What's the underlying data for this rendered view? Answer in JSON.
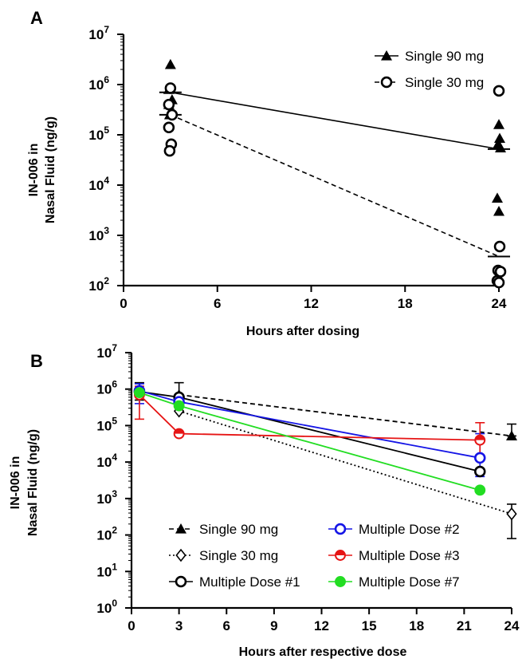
{
  "chart_data": [
    {
      "panel_label": "A",
      "type": "scatter",
      "xlabel": "Hours after dosing",
      "ylabel_line1": "IN-006 in",
      "ylabel_line2": "Nasal Fluid (ng/g)",
      "xlim": [
        0,
        24
      ],
      "ylim_log10": [
        2,
        7
      ],
      "x_ticks": [
        0,
        6,
        12,
        18,
        24
      ],
      "y_ticks": [
        2,
        3,
        4,
        5,
        6,
        7
      ],
      "y_scale": "log",
      "legend_position": "top-right",
      "series": [
        {
          "name": "Single 90 mg",
          "marker": "filled-triangle",
          "line": "solid",
          "color": "#000000",
          "points": [
            {
              "x": 3,
              "y": 2500000
            },
            {
              "x": 3,
              "y": 800000
            },
            {
              "x": 3,
              "y": 500000
            },
            {
              "x": 3,
              "y": 400000
            },
            {
              "x": 3,
              "y": 300000
            },
            {
              "x": 3,
              "y": 250000
            },
            {
              "x": 24,
              "y": 160000
            },
            {
              "x": 24,
              "y": 85000
            },
            {
              "x": 24,
              "y": 65000
            },
            {
              "x": 24,
              "y": 55000
            },
            {
              "x": 24,
              "y": 5500
            },
            {
              "x": 24,
              "y": 3000
            }
          ],
          "mean_x": [
            3,
            24
          ],
          "mean_y": [
            700000,
            52000
          ]
        },
        {
          "name": "Single 30 mg",
          "marker": "open-circle",
          "line": "dashed",
          "color": "#000000",
          "points": [
            {
              "x": 3,
              "y": 850000
            },
            {
              "x": 3,
              "y": 400000
            },
            {
              "x": 3,
              "y": 250000
            },
            {
              "x": 3,
              "y": 140000
            },
            {
              "x": 3,
              "y": 65000
            },
            {
              "x": 3,
              "y": 48000
            },
            {
              "x": 24,
              "y": 750000
            },
            {
              "x": 24,
              "y": 600
            },
            {
              "x": 24,
              "y": 200
            },
            {
              "x": 24,
              "y": 190
            },
            {
              "x": 24,
              "y": 125
            },
            {
              "x": 24,
              "y": 115
            }
          ],
          "mean_x": [
            3,
            24
          ],
          "mean_y": [
            250000,
            380
          ]
        }
      ]
    },
    {
      "panel_label": "B",
      "type": "line",
      "xlabel": "Hours after respective dose",
      "ylabel_line1": "IN-006 in",
      "ylabel_line2": "Nasal Fluid (ng/g)",
      "xlim": [
        0,
        24
      ],
      "ylim_log10": [
        0,
        7
      ],
      "x_ticks": [
        0,
        3,
        6,
        9,
        12,
        15,
        18,
        21,
        24
      ],
      "y_ticks": [
        0,
        1,
        2,
        3,
        4,
        5,
        6,
        7
      ],
      "y_scale": "log",
      "legend_position": "bottom-left",
      "series": [
        {
          "name": "Single 90 mg",
          "marker": "filled-triangle",
          "line": "dashed",
          "color": "#000000",
          "x": [
            3,
            24
          ],
          "y": [
            700000,
            52000
          ],
          "err_low": [
            null,
            52000
          ],
          "err_high": [
            null,
            110000
          ]
        },
        {
          "name": "Single 30 mg",
          "marker": "open-diamond",
          "line": "dotted",
          "color": "#000000",
          "x": [
            3,
            24
          ],
          "y": [
            250000,
            380
          ],
          "err_low": [
            null,
            80
          ],
          "err_high": [
            null,
            700
          ]
        },
        {
          "name": "Multiple Dose #1",
          "marker": "open-circle",
          "line": "solid",
          "color": "#000000",
          "x": [
            0.5,
            3,
            22
          ],
          "y": [
            850000,
            600000,
            5500
          ],
          "err_low": [
            500000,
            350000,
            null
          ],
          "err_high": [
            1500000,
            1500000,
            null
          ]
        },
        {
          "name": "Multiple Dose #2",
          "marker": "open-circle",
          "line": "solid",
          "color": "#1515e6",
          "x": [
            0.5,
            3,
            22
          ],
          "y": [
            900000,
            450000,
            13000
          ],
          "err_low": [
            400000,
            null,
            4000
          ],
          "err_high": [
            1400000,
            null,
            60000
          ]
        },
        {
          "name": "Multiple Dose #3",
          "marker": "half-filled-circle",
          "line": "solid",
          "color": "#e61515",
          "x": [
            0.5,
            3,
            22
          ],
          "y": [
            700000,
            60000,
            40000
          ],
          "err_low": [
            150000,
            null,
            12000
          ],
          "err_high": [
            1200000,
            null,
            120000
          ]
        },
        {
          "name": "Multiple Dose #7",
          "marker": "filled-circle",
          "line": "solid",
          "color": "#22dd22",
          "x": [
            0.5,
            3,
            22
          ],
          "y": [
            800000,
            350000,
            1700
          ],
          "err_low": [
            null,
            null,
            null
          ],
          "err_high": [
            null,
            null,
            null
          ]
        }
      ]
    }
  ]
}
